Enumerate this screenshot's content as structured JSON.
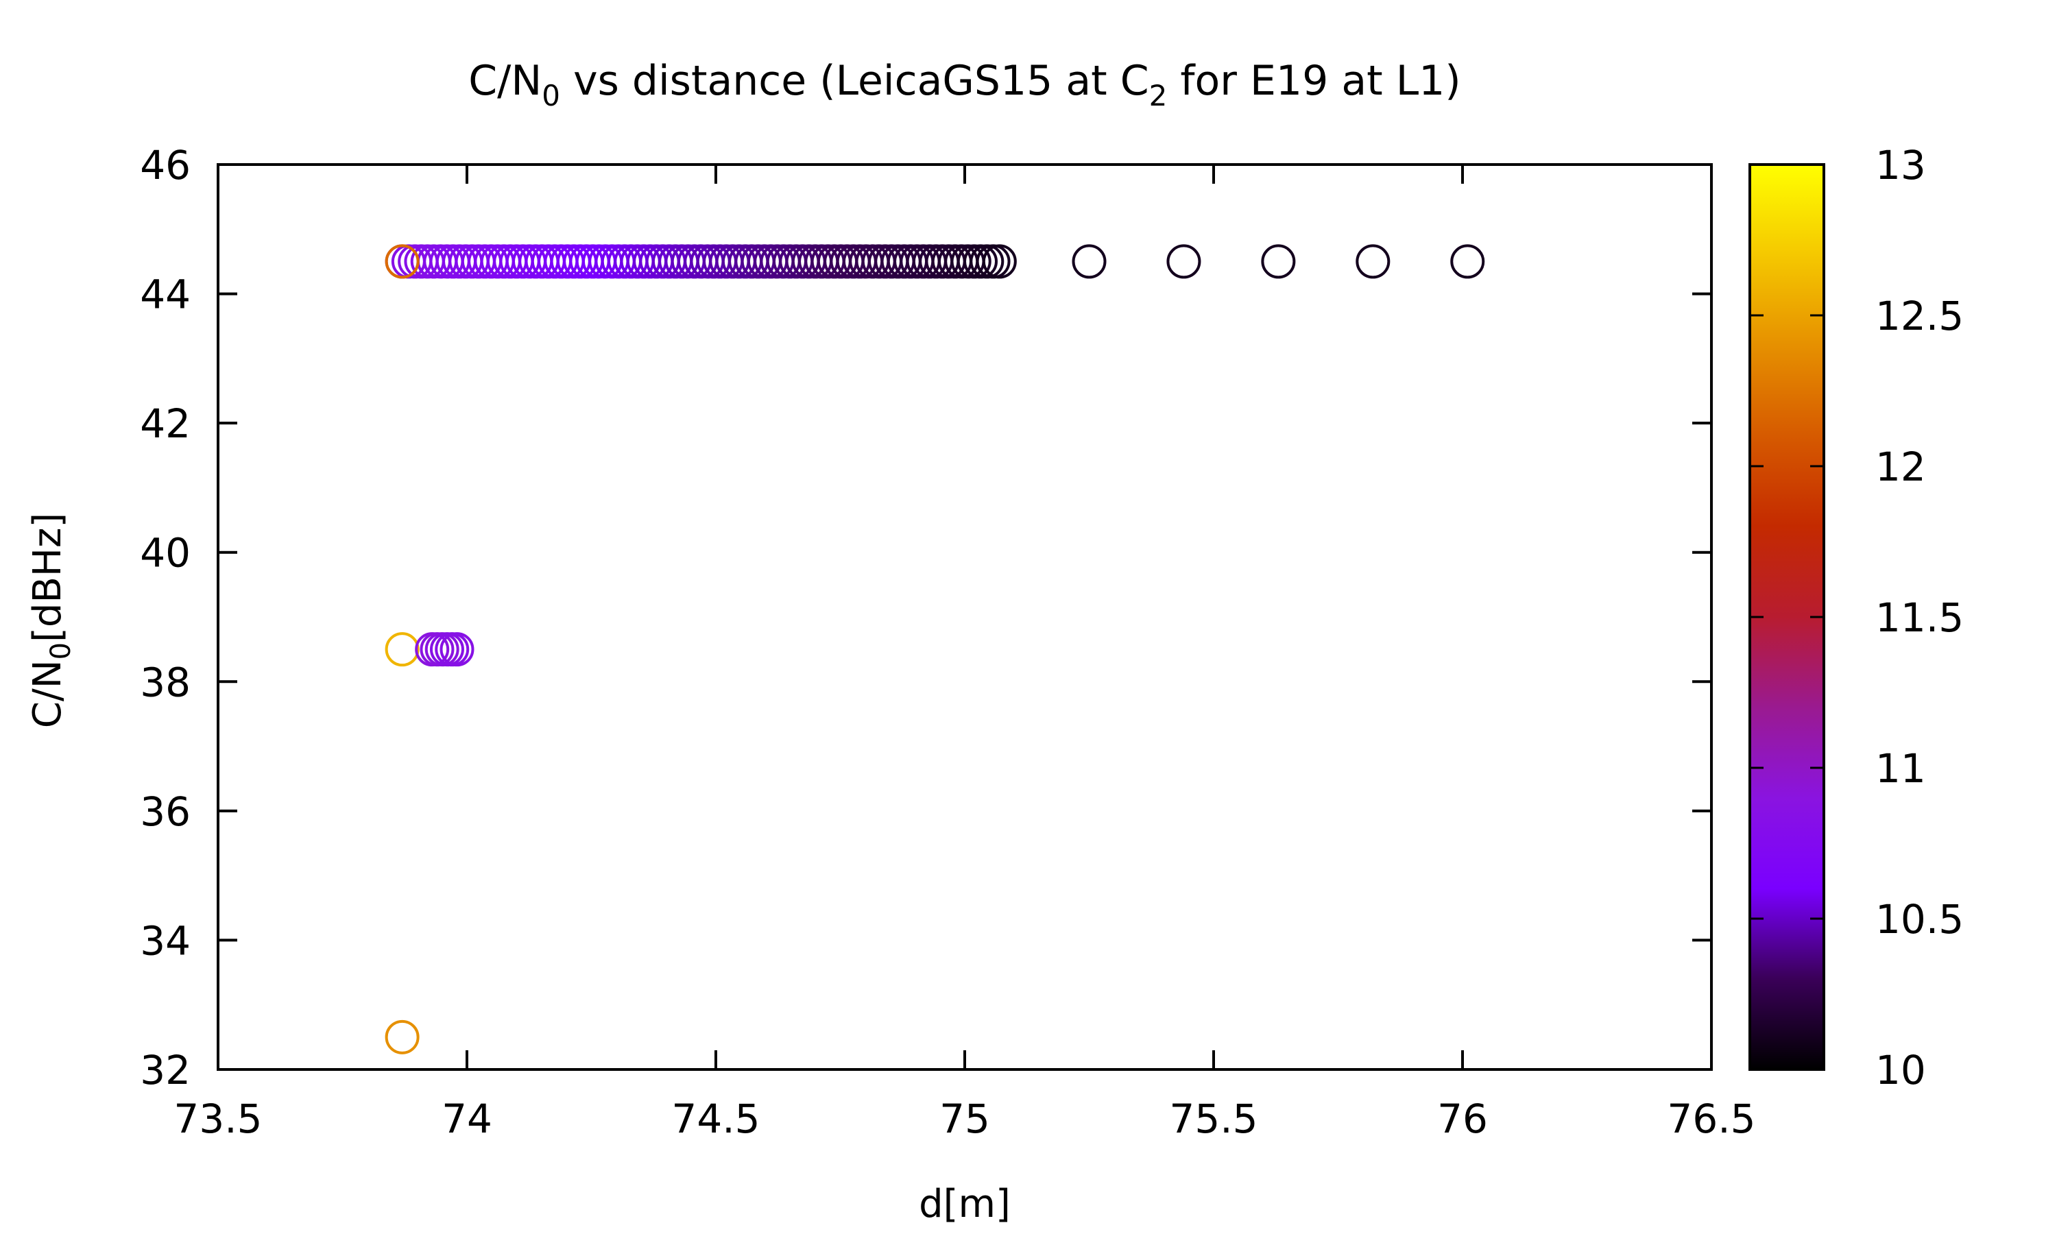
{
  "chart_data": {
    "type": "scatter",
    "title_parts": {
      "prefix": "C/N",
      "sub1": "0",
      "middle": " vs distance (LeicaGS15 at C",
      "sub2": "2",
      "suffix": " for E19 at L1)"
    },
    "xlabel": "d[m]",
    "ylabel_parts": {
      "prefix": "C/N",
      "sub": "0",
      "suffix": "[dBHz]"
    },
    "xlim": [
      73.5,
      76.5
    ],
    "ylim": [
      32,
      46
    ],
    "xticks": [
      "73.5",
      "74",
      "74.5",
      "75",
      "75.5",
      "76",
      "76.5"
    ],
    "yticks": [
      "32",
      "34",
      "36",
      "38",
      "40",
      "42",
      "44",
      "46"
    ],
    "colorbar": {
      "range": [
        10,
        13
      ],
      "ticks": [
        "10",
        "10.5",
        "11",
        "11.5",
        "12",
        "12.5",
        "13"
      ],
      "palette": [
        "#000000",
        "#3a0058",
        "#7a00ff",
        "#8a14e0",
        "#9a1a90",
        "#b81c30",
        "#c42a00",
        "#d65a00",
        "#e69000",
        "#f5c800",
        "#ffff00"
      ]
    },
    "series_high": {
      "y": 44.5,
      "x_start": 73.87,
      "x_end": 75.07,
      "count": 95,
      "c_start": 10.85,
      "c_end": 10.1,
      "extra": [
        {
          "x": 73.87,
          "y": 44.5,
          "c": 12.2
        },
        {
          "x": 75.25,
          "y": 44.5,
          "c": 10.1
        },
        {
          "x": 75.44,
          "y": 44.5,
          "c": 10.1
        },
        {
          "x": 75.63,
          "y": 44.5,
          "c": 10.1
        },
        {
          "x": 75.82,
          "y": 44.5,
          "c": 10.1
        },
        {
          "x": 76.01,
          "y": 44.5,
          "c": 10.1
        }
      ]
    },
    "series_mid": [
      {
        "x": 73.87,
        "y": 38.5,
        "c": 12.6
      },
      {
        "x": 73.93,
        "y": 38.5,
        "c": 10.9
      },
      {
        "x": 73.94,
        "y": 38.5,
        "c": 10.9
      },
      {
        "x": 73.95,
        "y": 38.5,
        "c": 10.9
      },
      {
        "x": 73.96,
        "y": 38.5,
        "c": 10.85
      },
      {
        "x": 73.97,
        "y": 38.5,
        "c": 10.85
      },
      {
        "x": 73.98,
        "y": 38.5,
        "c": 10.85
      }
    ],
    "series_low": [
      {
        "x": 73.87,
        "y": 32.5,
        "c": 12.4
      }
    ]
  }
}
